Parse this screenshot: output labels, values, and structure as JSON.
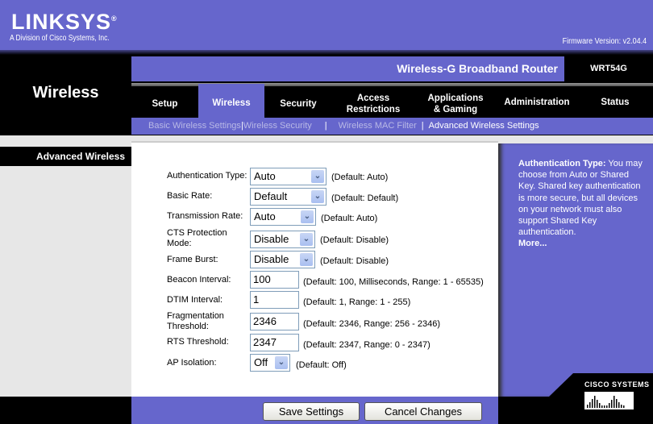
{
  "header": {
    "logo": "LINKSYS",
    "logo_reg": "®",
    "logo_sub": "A Division of Cisco Systems, Inc.",
    "firmware": "Firmware Version: v2.04.4",
    "section": "Wireless",
    "product": "Wireless-G Broadband Router",
    "model": "WRT54G"
  },
  "tabs": [
    {
      "label": "Setup"
    },
    {
      "label": "Wireless",
      "active": true
    },
    {
      "label": "Security"
    },
    {
      "label": "Access Restrictions"
    },
    {
      "label": "Applications & Gaming"
    },
    {
      "label": "Administration"
    },
    {
      "label": "Status"
    }
  ],
  "subnav": [
    {
      "label": "Basic Wireless Settings"
    },
    {
      "label": "Wireless Security"
    },
    {
      "label": "Wireless MAC Filter"
    },
    {
      "label": "Advanced Wireless Settings",
      "active": true
    }
  ],
  "subnav_sep": "|",
  "left": {
    "section_label": "Advanced Wireless"
  },
  "form": {
    "auth": {
      "label": "Authentication Type:",
      "value": "Auto",
      "default": "(Default: Auto)"
    },
    "basic_rate": {
      "label": "Basic Rate:",
      "value": "Default",
      "default": "(Default: Default)"
    },
    "tx_rate": {
      "label": "Transmission Rate:",
      "value": "Auto",
      "default": "(Default: Auto)"
    },
    "cts": {
      "label": "CTS Protection Mode:",
      "value": "Disable",
      "default": "(Default: Disable)"
    },
    "frame_burst": {
      "label": "Frame Burst:",
      "value": "Disable",
      "default": "(Default: Disable)"
    },
    "beacon": {
      "label": "Beacon Interval:",
      "value": "100",
      "default": "(Default: 100, Milliseconds, Range: 1 - 65535)"
    },
    "dtim": {
      "label": "DTIM Interval:",
      "value": "1",
      "default": "(Default: 1, Range: 1 - 255)"
    },
    "frag": {
      "label": "Fragmentation Threshold:",
      "value": "2346",
      "default": "(Default: 2346, Range: 256 - 2346)"
    },
    "rts": {
      "label": "RTS Threshold:",
      "value": "2347",
      "default": "(Default: 2347, Range: 0 - 2347)"
    },
    "ap_iso": {
      "label": "AP Isolation:",
      "value": "Off",
      "default": "(Default: Off)"
    }
  },
  "help": {
    "title": "Authentication Type:",
    "body": " You may choose from Auto or Shared Key. Shared key authentication is more secure, but all devices on your network must also support Shared Key authentication.",
    "more": "More..."
  },
  "buttons": {
    "save": "Save Settings",
    "cancel": "Cancel Changes"
  },
  "cisco": "CISCO SYSTEMS",
  "colors": {
    "brand_purple": "#6666cc",
    "black": "#000000"
  }
}
